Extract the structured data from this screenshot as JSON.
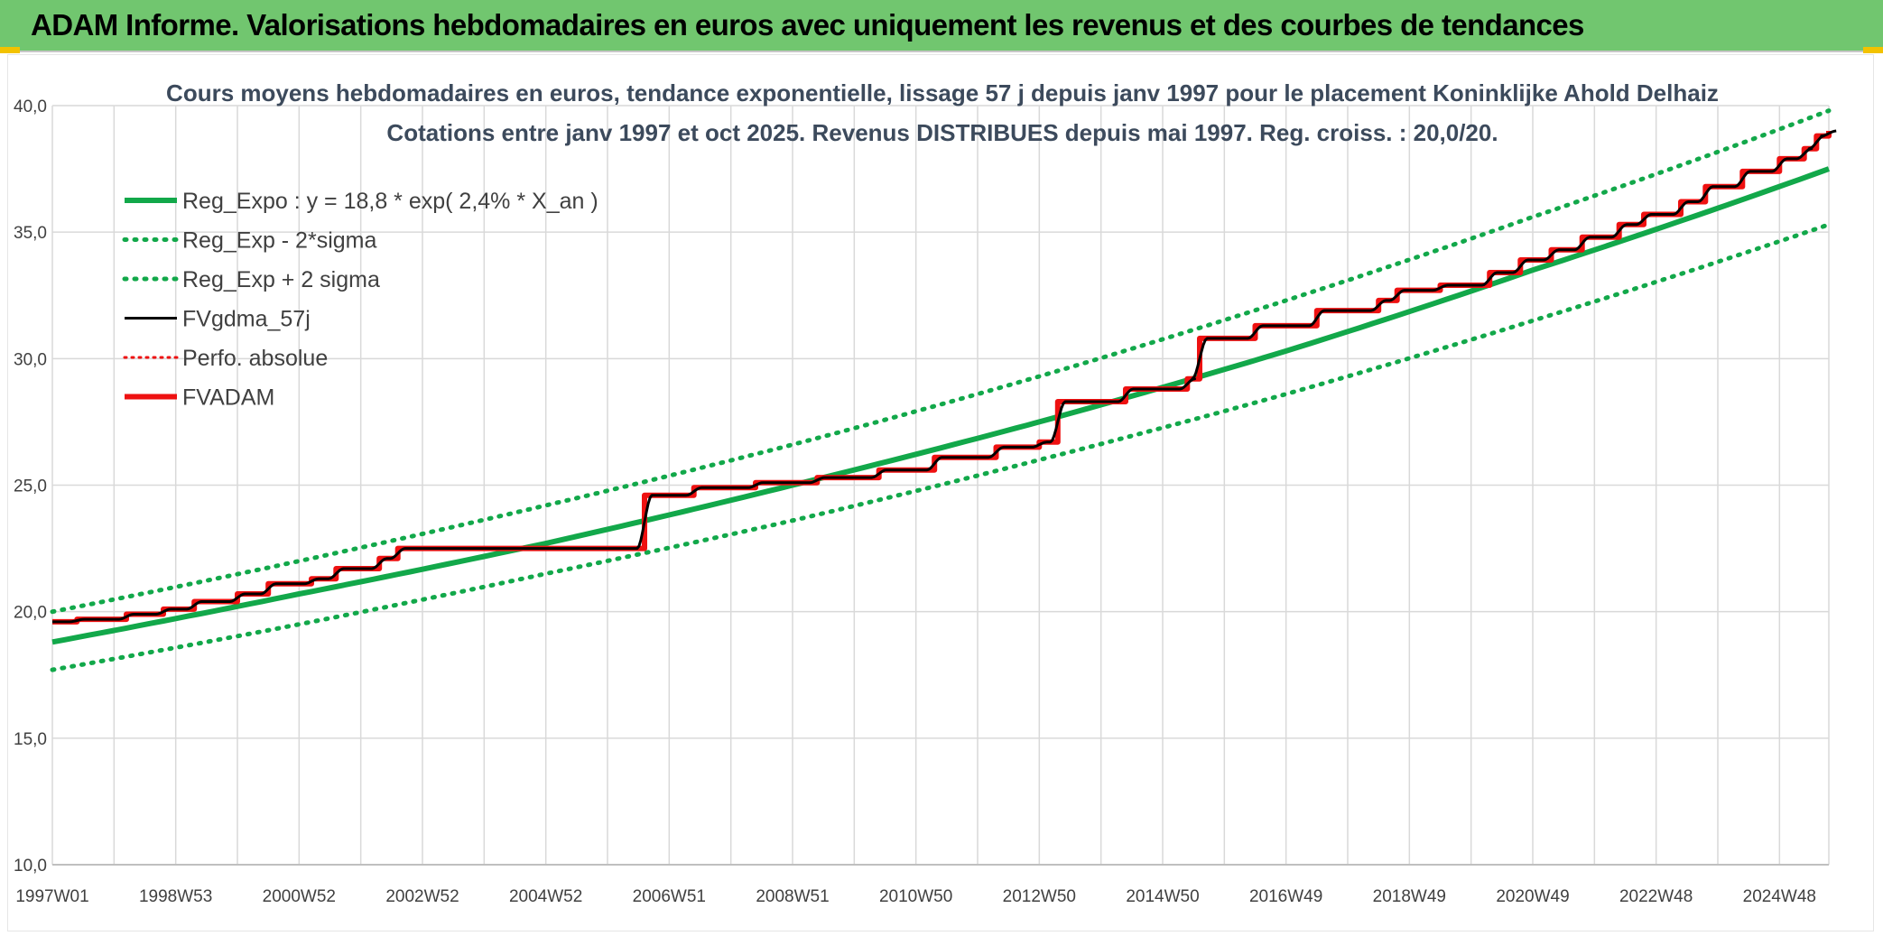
{
  "banner": {
    "title": "ADAM Informe. Valorisations hebdomadaires en euros avec uniquement les revenus et des courbes de tendances"
  },
  "colors": {
    "banner_bg": "#71c66f",
    "reg_green": "#12a84a",
    "fvadam_red": "#ee1111",
    "perfo_red": "#ee1111",
    "fvgdma_black": "#000000",
    "grid": "#d9d9d9",
    "corner_accent": "#f2c200"
  },
  "chart_data": {
    "type": "line",
    "title_lines": [
      "Cours moyens hebdomadaires en euros, tendance exponentielle, lissage 57 j depuis janv 1997 pour le placement Koninklijke Ahold Delhaiz",
      "Cotations entre janv 1997 et oct 2025. Revenus DISTRIBUES depuis mai 1997. Reg. croiss. : 20,0/20."
    ],
    "x_range": [
      1997.0,
      2025.8
    ],
    "x_ticks": [
      {
        "x": 1997.0,
        "label": "1997W01"
      },
      {
        "x": 1999.0,
        "label": "1998W53"
      },
      {
        "x": 2001.0,
        "label": "2000W52"
      },
      {
        "x": 2003.0,
        "label": "2002W52"
      },
      {
        "x": 2005.0,
        "label": "2004W52"
      },
      {
        "x": 2007.0,
        "label": "2006W51"
      },
      {
        "x": 2009.0,
        "label": "2008W51"
      },
      {
        "x": 2011.0,
        "label": "2010W50"
      },
      {
        "x": 2013.0,
        "label": "2012W50"
      },
      {
        "x": 2015.0,
        "label": "2014W50"
      },
      {
        "x": 2017.0,
        "label": "2016W49"
      },
      {
        "x": 2019.0,
        "label": "2018W49"
      },
      {
        "x": 2021.0,
        "label": "2020W49"
      },
      {
        "x": 2023.0,
        "label": "2022W48"
      },
      {
        "x": 2025.0,
        "label": "2024W48"
      }
    ],
    "y_range": [
      10,
      40
    ],
    "y_ticks": [
      {
        "y": 10,
        "label": "10,0"
      },
      {
        "y": 15,
        "label": "15,0"
      },
      {
        "y": 20,
        "label": "20,0"
      },
      {
        "y": 25,
        "label": "25,0"
      },
      {
        "y": 30,
        "label": "30,0"
      },
      {
        "y": 35,
        "label": "35,0"
      },
      {
        "y": 40,
        "label": "40,0"
      }
    ],
    "grid": true,
    "legend_position": "top-left",
    "legend": [
      {
        "label": "Reg_Expo : y = 18,8 * exp( 2,4% *  X_an )",
        "style": "solid-thick",
        "color": "#12a84a"
      },
      {
        "label": "Reg_Exp - 2*sigma",
        "style": "dotted",
        "color": "#12a84a"
      },
      {
        "label": "Reg_Exp + 2 sigma",
        "style": "dotted",
        "color": "#12a84a"
      },
      {
        "label": "FVgdma_57j",
        "style": "solid",
        "color": "#000000"
      },
      {
        "label": "Perfo. absolue",
        "style": "dotted-thin",
        "color": "#ee1111"
      },
      {
        "label": "FVADAM",
        "style": "solid-thick",
        "color": "#ee1111"
      }
    ],
    "series": [
      {
        "name": "Reg_Expo : y = 18,8 * exp( 2,4% *  X_an )",
        "kind": "smooth",
        "x": [
          1997.0,
          2001.0,
          2005.0,
          2009.0,
          2013.0,
          2017.0,
          2021.0,
          2025.8
        ],
        "y": [
          18.8,
          20.7,
          22.7,
          25.0,
          27.5,
          30.3,
          33.5,
          37.5
        ]
      },
      {
        "name": "Reg_Exp - 2*sigma",
        "kind": "smooth",
        "x": [
          1997.0,
          2001.0,
          2005.0,
          2009.0,
          2013.0,
          2017.0,
          2021.0,
          2025.8
        ],
        "y": [
          17.7,
          19.5,
          21.5,
          23.6,
          26.0,
          28.6,
          31.5,
          35.3
        ]
      },
      {
        "name": "Reg_Exp + 2 sigma",
        "kind": "smooth",
        "x": [
          1997.0,
          2001.0,
          2005.0,
          2009.0,
          2013.0,
          2017.0,
          2021.0,
          2025.8
        ],
        "y": [
          20.0,
          22.0,
          24.2,
          26.6,
          29.3,
          32.3,
          35.6,
          39.8
        ]
      },
      {
        "name": "FVADAM",
        "kind": "step",
        "x": [
          1997.0,
          1997.4,
          1998.2,
          1998.8,
          1999.3,
          2000.0,
          2000.5,
          2001.2,
          2001.6,
          2002.3,
          2002.6,
          2006.6,
          2007.4,
          2008.4,
          2009.4,
          2010.4,
          2011.3,
          2012.3,
          2013.0,
          2013.3,
          2014.4,
          2015.4,
          2015.6,
          2016.5,
          2017.5,
          2018.5,
          2018.8,
          2019.5,
          2020.3,
          2020.8,
          2021.3,
          2021.8,
          2022.4,
          2022.8,
          2023.4,
          2023.8,
          2024.4,
          2025.0,
          2025.4,
          2025.6,
          2025.8
        ],
        "y": [
          19.6,
          19.7,
          19.9,
          20.1,
          20.4,
          20.7,
          21.1,
          21.3,
          21.7,
          22.1,
          22.5,
          24.6,
          24.9,
          25.1,
          25.3,
          25.6,
          26.1,
          26.5,
          26.7,
          28.3,
          28.8,
          29.2,
          30.8,
          31.3,
          31.9,
          32.3,
          32.7,
          32.9,
          33.4,
          33.9,
          34.3,
          34.8,
          35.3,
          35.7,
          36.2,
          36.8,
          37.4,
          37.9,
          38.3,
          38.8,
          39.0
        ]
      },
      {
        "name": "FVgdma_57j",
        "kind": "smoothed-step",
        "x": [
          1997.0,
          1997.4,
          1998.2,
          1998.8,
          1999.3,
          2000.0,
          2000.5,
          2001.2,
          2001.6,
          2002.3,
          2002.6,
          2006.6,
          2007.4,
          2008.4,
          2009.4,
          2010.4,
          2011.3,
          2012.3,
          2013.0,
          2013.3,
          2014.4,
          2015.4,
          2015.6,
          2016.5,
          2017.5,
          2018.5,
          2018.8,
          2019.5,
          2020.3,
          2020.8,
          2021.3,
          2021.8,
          2022.4,
          2022.8,
          2023.4,
          2023.8,
          2024.4,
          2025.0,
          2025.4,
          2025.6,
          2025.8
        ],
        "y": [
          19.6,
          19.7,
          19.9,
          20.1,
          20.4,
          20.7,
          21.1,
          21.3,
          21.7,
          22.1,
          22.5,
          24.6,
          24.9,
          25.1,
          25.3,
          25.6,
          26.1,
          26.5,
          26.7,
          28.3,
          28.8,
          29.2,
          30.8,
          31.3,
          31.9,
          32.3,
          32.7,
          32.9,
          33.4,
          33.9,
          34.3,
          34.8,
          35.3,
          35.7,
          36.2,
          36.8,
          37.4,
          37.9,
          38.3,
          38.8,
          39.0
        ]
      }
    ]
  }
}
